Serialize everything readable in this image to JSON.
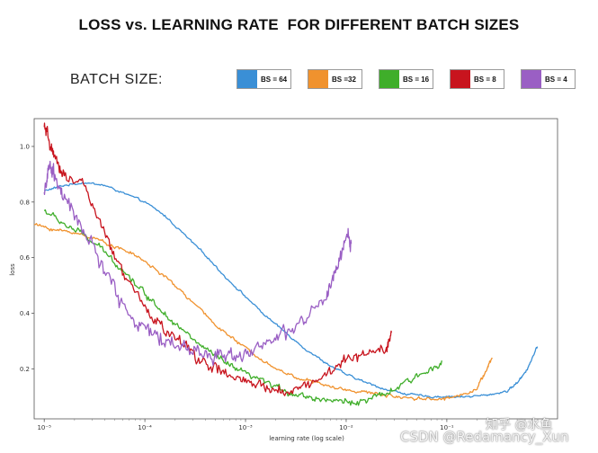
{
  "chart_data": {
    "type": "line",
    "title": "LOSS vs. LEARNING RATE  FOR DIFFERENT BATCH SIZES",
    "legend_title": "BATCH SIZE:",
    "xlabel": "learning rate (log scale)",
    "ylabel": "loss",
    "xscale": "log",
    "xlim_log10": [
      -5.1,
      0.1
    ],
    "ylim": [
      0.02,
      1.1
    ],
    "xticks": [
      {
        "exp": -5,
        "label": "10⁻⁵"
      },
      {
        "exp": -4,
        "label": "10⁻⁴"
      },
      {
        "exp": -3,
        "label": "10⁻³"
      },
      {
        "exp": -2,
        "label": "10⁻²"
      },
      {
        "exp": -1,
        "label": "10⁻¹"
      }
    ],
    "yticks": [
      {
        "value": 0.2,
        "label": "0.2"
      },
      {
        "value": 0.4,
        "label": "0.4"
      },
      {
        "value": 0.6,
        "label": "0.6"
      },
      {
        "value": 0.8,
        "label": "0.8"
      },
      {
        "value": 1.0,
        "label": "1.0"
      }
    ],
    "series": [
      {
        "name": "BS = 64",
        "color": "#3a8fd6",
        "noise": 0.004,
        "x_log10": [
          -5.0,
          -4.8,
          -4.6,
          -4.4,
          -4.2,
          -4.0,
          -3.8,
          -3.6,
          -3.4,
          -3.2,
          -3.0,
          -2.8,
          -2.6,
          -2.4,
          -2.2,
          -2.0,
          -1.8,
          -1.6,
          -1.4,
          -1.2,
          -1.0,
          -0.8,
          -0.6,
          -0.4,
          -0.3,
          -0.2,
          -0.1
        ],
        "y": [
          0.84,
          0.86,
          0.87,
          0.86,
          0.83,
          0.8,
          0.75,
          0.68,
          0.61,
          0.53,
          0.46,
          0.39,
          0.33,
          0.27,
          0.22,
          0.18,
          0.15,
          0.125,
          0.11,
          0.1,
          0.1,
          0.1,
          0.105,
          0.12,
          0.15,
          0.2,
          0.28
        ]
      },
      {
        "name": "BS =32",
        "color": "#f0922e",
        "noise": 0.006,
        "x_log10": [
          -5.1,
          -4.9,
          -4.7,
          -4.5,
          -4.3,
          -4.1,
          -3.9,
          -3.7,
          -3.5,
          -3.3,
          -3.1,
          -2.9,
          -2.7,
          -2.5,
          -2.3,
          -2.1,
          -1.9,
          -1.7,
          -1.5,
          -1.3,
          -1.1,
          -0.9,
          -0.7,
          -0.6,
          -0.55
        ],
        "y": [
          0.72,
          0.7,
          0.69,
          0.67,
          0.64,
          0.61,
          0.56,
          0.5,
          0.43,
          0.36,
          0.3,
          0.25,
          0.2,
          0.17,
          0.15,
          0.13,
          0.12,
          0.11,
          0.1,
          0.095,
          0.09,
          0.1,
          0.13,
          0.2,
          0.24
        ]
      },
      {
        "name": "BS = 16",
        "color": "#3fae2a",
        "noise": 0.012,
        "x_log10": [
          -5.0,
          -4.8,
          -4.6,
          -4.4,
          -4.2,
          -4.0,
          -3.8,
          -3.6,
          -3.4,
          -3.2,
          -3.0,
          -2.8,
          -2.6,
          -2.4,
          -2.2,
          -2.0,
          -1.8,
          -1.6,
          -1.4,
          -1.2,
          -1.05
        ],
        "y": [
          0.77,
          0.72,
          0.68,
          0.62,
          0.55,
          0.47,
          0.4,
          0.33,
          0.27,
          0.22,
          0.18,
          0.15,
          0.12,
          0.1,
          0.09,
          0.08,
          0.085,
          0.11,
          0.15,
          0.19,
          0.23
        ]
      },
      {
        "name": "BS = 8",
        "color": "#c8141e",
        "noise": 0.022,
        "x_log10": [
          -5.0,
          -4.95,
          -4.9,
          -4.8,
          -4.6,
          -4.4,
          -4.2,
          -4.0,
          -3.8,
          -3.6,
          -3.4,
          -3.2,
          -3.0,
          -2.8,
          -2.6,
          -2.4,
          -2.2,
          -2.0,
          -1.8,
          -1.6,
          -1.55
        ],
        "y": [
          1.07,
          1.02,
          0.95,
          0.9,
          0.86,
          0.68,
          0.53,
          0.42,
          0.34,
          0.28,
          0.22,
          0.18,
          0.15,
          0.13,
          0.12,
          0.14,
          0.18,
          0.23,
          0.26,
          0.28,
          0.33
        ]
      },
      {
        "name": "BS = 4",
        "color": "#9a5fc4",
        "noise": 0.03,
        "x_log10": [
          -5.0,
          -4.95,
          -4.9,
          -4.8,
          -4.6,
          -4.4,
          -4.2,
          -4.0,
          -3.8,
          -3.6,
          -3.4,
          -3.2,
          -3.0,
          -2.8,
          -2.6,
          -2.4,
          -2.2,
          -2.1,
          -2.0,
          -1.95
        ],
        "y": [
          0.84,
          0.92,
          0.9,
          0.8,
          0.7,
          0.55,
          0.42,
          0.34,
          0.3,
          0.28,
          0.25,
          0.25,
          0.26,
          0.29,
          0.32,
          0.38,
          0.45,
          0.55,
          0.68,
          0.65
        ]
      }
    ]
  },
  "watermarks": {
    "zhihu": "知乎 @水鱼",
    "csdn": "CSDN @Redamancy_Xun"
  }
}
